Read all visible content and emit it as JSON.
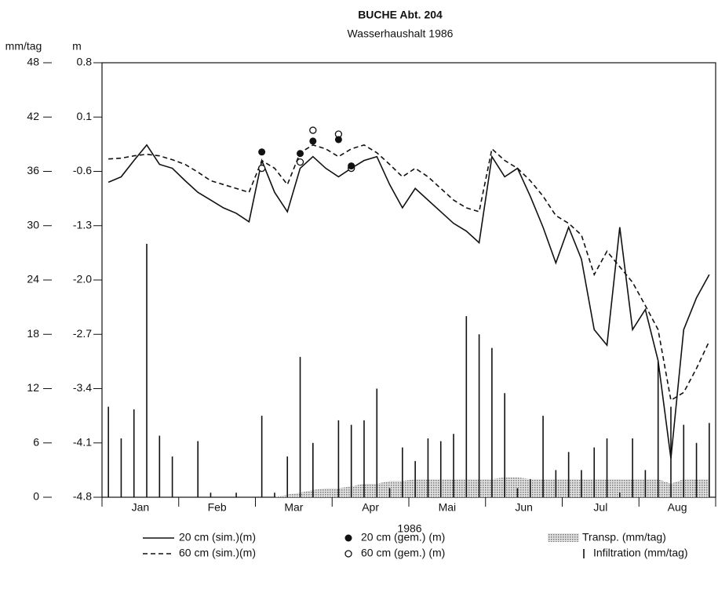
{
  "chart_data": {
    "type": "line",
    "title": "BUCHE Abt. 204",
    "subtitle": "Wasserhaushalt 1986",
    "y_label": "mm/tag",
    "y2_label": "m",
    "x_label": "1986",
    "categories": [
      null,
      null,
      null,
      "Jan",
      null,
      null,
      null,
      null,
      null,
      "Feb",
      null,
      null,
      null,
      null,
      null,
      "Mar",
      null,
      null,
      null,
      null,
      null,
      "Apr",
      null,
      null,
      null,
      null,
      null,
      "Mai",
      null,
      null,
      null,
      null,
      null,
      "Jun",
      null,
      null,
      null,
      null,
      null,
      "Jul",
      null,
      null,
      null,
      null,
      null,
      "Aug",
      null,
      null
    ],
    "ylim": [
      0,
      48
    ],
    "yticks": [
      0,
      6,
      12,
      18,
      24,
      30,
      36,
      42,
      48
    ],
    "y2lim": [
      -4.8,
      0.8
    ],
    "y2ticks": [
      -4.8,
      -4.1,
      -3.4,
      -2.7,
      {
        "value": -2,
        "label": "-2.0"
      },
      -1.3,
      -0.6,
      0.1,
      0.8
    ],
    "series": [
      {
        "name": "20 cm (sim.)(m)",
        "style": "solid",
        "color": "#111",
        "axis": "y2",
        "values": [
          -0.74,
          -0.67,
          -0.46,
          -0.26,
          -0.51,
          -0.56,
          -0.72,
          -0.87,
          -0.97,
          -1.07,
          -1.14,
          -1.25,
          -0.46,
          -0.87,
          -1.12,
          -0.56,
          -0.41,
          -0.56,
          -0.67,
          -0.56,
          -0.46,
          -0.41,
          -0.77,
          -1.07,
          -0.82,
          -0.97,
          -1.12,
          -1.27,
          -1.37,
          -1.52,
          -0.41,
          -0.67,
          -0.56,
          -0.92,
          -1.32,
          -1.78,
          -1.32,
          -1.73,
          -2.64,
          -2.84,
          -1.32,
          -2.64,
          -2.38,
          -3.04,
          -4.3,
          -2.64,
          -2.23,
          -1.93
        ]
      },
      {
        "name": "60 cm (sim.)(m)",
        "style": "dashed",
        "color": "#111",
        "axis": "y2",
        "values": [
          -0.44,
          -0.43,
          -0.4,
          -0.38,
          -0.4,
          -0.45,
          -0.51,
          -0.61,
          -0.72,
          -0.77,
          -0.82,
          -0.87,
          -0.46,
          -0.56,
          -0.77,
          -0.36,
          -0.26,
          -0.31,
          -0.41,
          -0.31,
          -0.26,
          -0.36,
          -0.51,
          -0.67,
          -0.56,
          -0.67,
          -0.82,
          -0.97,
          -1.07,
          -1.12,
          -0.31,
          -0.46,
          -0.56,
          -0.72,
          -0.92,
          -1.17,
          -1.27,
          -1.42,
          -1.93,
          -1.63,
          -1.83,
          -2.03,
          -2.33,
          -2.64,
          -3.55,
          -3.45,
          -3.14,
          -2.79
        ]
      },
      {
        "name": "20 cm (gem.) (m)",
        "style": "dots",
        "color": "#111",
        "axis": "y2",
        "values": [
          null,
          null,
          null,
          null,
          null,
          null,
          null,
          null,
          null,
          null,
          null,
          null,
          -0.35,
          null,
          null,
          -0.37,
          -0.21,
          null,
          -0.19,
          -0.53,
          null,
          null,
          null,
          null,
          null,
          null,
          null,
          null,
          null,
          null,
          null,
          null,
          null,
          null,
          null,
          null,
          null,
          null,
          null,
          null,
          null,
          null,
          null,
          null,
          null,
          null,
          null,
          null
        ]
      },
      {
        "name": "60 cm (gem.) (m)",
        "style": "circles",
        "color": "#111",
        "axis": "y2",
        "values": [
          null,
          null,
          null,
          null,
          null,
          null,
          null,
          null,
          null,
          null,
          null,
          null,
          -0.56,
          null,
          null,
          -0.48,
          -0.07,
          null,
          -0.12,
          -0.56,
          null,
          null,
          null,
          null,
          null,
          null,
          null,
          null,
          null,
          null,
          null,
          null,
          null,
          null,
          null,
          null,
          null,
          null,
          null,
          null,
          null,
          null,
          null,
          null,
          null,
          null,
          null,
          null
        ]
      },
      {
        "name": "Transp. (mm/tag)",
        "style": "area",
        "color": "#b8b8b8",
        "values": [
          0,
          0,
          0,
          0,
          0,
          0,
          0,
          0,
          0,
          0,
          0,
          0,
          0,
          0,
          0.3,
          0.5,
          0.8,
          1,
          1,
          1.2,
          1.5,
          1.5,
          1.8,
          1.8,
          2,
          2,
          2,
          2,
          2,
          2,
          2,
          2.2,
          2.2,
          2,
          2,
          2,
          2,
          2,
          2,
          2,
          2,
          2,
          2,
          2,
          1.5,
          2,
          2,
          2
        ]
      },
      {
        "name": "Infiltration (mm/tag)",
        "style": "bars",
        "color": "#111",
        "values": [
          10,
          6.5,
          9.7,
          28,
          6.8,
          4.5,
          0,
          6.2,
          0.5,
          0,
          0.5,
          0,
          9,
          0.5,
          4.5,
          15.5,
          6,
          0,
          8.5,
          8,
          8.5,
          12,
          1,
          5.5,
          4,
          6.5,
          6.2,
          7,
          20,
          18,
          16.5,
          11.5,
          1,
          2,
          9,
          3,
          5,
          3,
          5.5,
          6.5,
          0.5,
          6.5,
          3,
          15,
          10,
          8,
          6,
          8.2
        ]
      }
    ]
  }
}
